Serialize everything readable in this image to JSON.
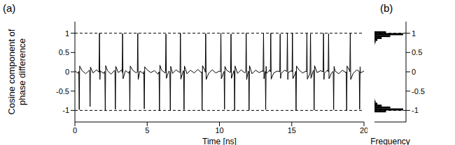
{
  "chart_data": [
    {
      "type": "line",
      "title": "(a)",
      "xlabel": "Time [ns]",
      "ylabel": "Cosine component of phase difference",
      "color": "#000000",
      "x": [
        0,
        0.25,
        0.27,
        0.3,
        0.33,
        0.5,
        0.75,
        1,
        1.02,
        1.05,
        1.08,
        1.25,
        1.5,
        1.67,
        1.7,
        1.73,
        1.75,
        2,
        2.07,
        2.1,
        2.13,
        2.25,
        2.5,
        2.75,
        2.77,
        2.8,
        2.83,
        3,
        3.25,
        3.27,
        3.3,
        3.33,
        3.5,
        3.75,
        3.77,
        3.8,
        3.83,
        4,
        4.25,
        4.32,
        4.35,
        4.38,
        4.5,
        4.75,
        4.77,
        4.8,
        4.83,
        5,
        5.25,
        5.5,
        5.75,
        5.82,
        5.85,
        5.88,
        6,
        6.25,
        6.27,
        6.3,
        6.33,
        6.5,
        6.57,
        6.6,
        6.63,
        6.75,
        7,
        7.25,
        7.27,
        7.3,
        7.33,
        7.5,
        7.52,
        7.55,
        7.58,
        7.75,
        8,
        8.25,
        8.5,
        8.75,
        8.77,
        8.8,
        8.83,
        9,
        9.02,
        9.05,
        9.08,
        9.25,
        9.5,
        9.75,
        10,
        10.07,
        10.1,
        10.13,
        10.25,
        10.32,
        10.35,
        10.38,
        10.5,
        10.75,
        10.77,
        10.8,
        10.83,
        11,
        11.02,
        11.05,
        11.08,
        11.25,
        11.5,
        11.75,
        11.82,
        11.85,
        11.88,
        12,
        12.02,
        12.05,
        12.08,
        12.25,
        12.5,
        12.75,
        13,
        13.02,
        13.05,
        13.08,
        13.17,
        13.2,
        13.23,
        13.25,
        13.5,
        13.52,
        13.55,
        13.58,
        13.75,
        14,
        14.17,
        14.2,
        14.23,
        14.25,
        14.5,
        14.67,
        14.7,
        14.73,
        14.75,
        15,
        15.02,
        15.05,
        15.08,
        15.25,
        15.27,
        15.3,
        15.33,
        15.5,
        15.75,
        16,
        16.02,
        16.05,
        16.08,
        16.25,
        16.27,
        16.3,
        16.33,
        16.5,
        16.52,
        16.55,
        16.58,
        16.75,
        17,
        17.17,
        17.2,
        17.23,
        17.25,
        17.5,
        17.52,
        17.55,
        17.58,
        17.75,
        17.87,
        17.9,
        17.93,
        18,
        18.25,
        18.5,
        18.75,
        18.77,
        18.8,
        18.83,
        19,
        19.02,
        19.05,
        19.08,
        19.25,
        19.5,
        19.67,
        19.7,
        19.73,
        19.75,
        20
      ],
      "values": [
        0.02,
        -0.04,
        0.01,
        -0.98,
        0.15,
        0.03,
        -0.05,
        0.04,
        0,
        -0.9,
        0.12,
        -0.03,
        0.05,
        -0.01,
        1,
        -0.2,
        0.02,
        -0.04,
        0.01,
        -1,
        0.16,
        0.03,
        -0.06,
        0.04,
        0,
        -0.97,
        0.14,
        -0.02,
        0.05,
        -0.02,
        0.99,
        -0.18,
        0.03,
        -0.04,
        0.02,
        -1,
        0.15,
        0.04,
        -0.03,
        0,
        1,
        -0.2,
        0.02,
        -0.05,
        0.01,
        -0.96,
        0.13,
        0.05,
        -0.02,
        0.03,
        -0.06,
        0,
        -1,
        0.17,
        0.04,
        -0.03,
        0.01,
        0.98,
        -0.17,
        0.02,
        -0.01,
        -0.99,
        0.14,
        -0.04,
        0.05,
        -0.02,
        0,
        1,
        -0.19,
        0.03,
        0.01,
        -0.98,
        0.15,
        -0.05,
        0.04,
        -0.03,
        0.06,
        -0.02,
        0,
        -1,
        0.16,
        0.03,
        -0.01,
        0.99,
        -0.2,
        -0.04,
        0.05,
        -0.03,
        0.02,
        0,
        1,
        -0.18,
        -0.05,
        0.01,
        -0.97,
        0.14,
        0.04,
        -0.02,
        0,
        0.98,
        -0.17,
        0.03,
        0.01,
        -1,
        0.15,
        -0.04,
        0.05,
        -0.03,
        0,
        1,
        -0.2,
        0.02,
        -0.01,
        -0.99,
        0.16,
        -0.05,
        0.04,
        -0.02,
        0.03,
        0,
        0.99,
        -0.18,
        0.01,
        -0.98,
        0.14,
        -0.04,
        0.05,
        0,
        1,
        -0.19,
        -0.03,
        0.02,
        0,
        0.98,
        -0.17,
        -0.05,
        0.04,
        0.01,
        1,
        -0.2,
        -0.02,
        0.03,
        0,
        0.99,
        -0.18,
        -0.04,
        0.01,
        -1,
        0.15,
        0.05,
        -0.03,
        0.02,
        0,
        1,
        -0.19,
        -0.05,
        0,
        0.98,
        -0.17,
        0.04,
        0.01,
        -0.99,
        0.16,
        -0.02,
        0.03,
        0,
        1,
        -0.2,
        -0.04,
        0.05,
        0,
        0.99,
        -0.18,
        -0.03,
        0.01,
        -0.98,
        0.14,
        0.02,
        -0.05,
        0.04,
        -0.02,
        0,
        -1,
        0.15,
        0.03,
        0,
        1,
        -0.2,
        -0.04,
        0.05,
        0.01,
        -0.97,
        0.13,
        -0.03,
        0.02
      ],
      "xlim": [
        0,
        20
      ],
      "xticks": [
        0,
        5,
        10,
        15,
        20
      ],
      "ylim": [
        -1.3,
        1.3
      ],
      "yticks": [
        -1,
        -0.5,
        0,
        0.5,
        1
      ],
      "hlines": [
        1,
        -1
      ]
    },
    {
      "type": "histogram",
      "title": "(b)",
      "xlabel": "Frequency",
      "color": "#000000",
      "orientation": "horizontal",
      "tick_labels": "y",
      "bins": [
        -1.1,
        -1.05,
        -1,
        -0.95,
        -0.9,
        -0.85,
        -0.8,
        -0.75,
        -0.7,
        -0.65,
        -0.6,
        -0.55,
        -0.5,
        -0.45,
        -0.4,
        -0.35,
        -0.3,
        -0.25,
        -0.2,
        -0.15,
        -0.1,
        -0.05,
        0,
        0.05,
        0.1,
        0.15,
        0.2,
        0.25,
        0.3,
        0.35,
        0.4,
        0.45,
        0.5,
        0.55,
        0.6,
        0.65,
        0.7,
        0.75,
        0.8,
        0.85,
        0.9,
        0.95,
        1,
        1.05,
        1.1
      ],
      "counts": [
        0,
        40,
        100,
        55,
        25,
        10,
        4,
        1,
        0,
        0,
        0,
        0,
        0,
        0,
        0,
        0,
        0,
        0,
        0,
        0,
        0,
        0,
        0,
        0,
        0,
        0,
        0,
        0,
        0,
        0,
        0,
        0,
        0,
        0,
        0,
        0,
        1,
        4,
        10,
        25,
        55,
        100,
        40,
        0
      ],
      "xlim": [
        0,
        110
      ],
      "ylim": [
        -1.3,
        1.3
      ],
      "yticks": [
        -1,
        -0.5,
        0,
        0.5,
        1
      ],
      "hlines": [
        1,
        -1
      ]
    }
  ]
}
